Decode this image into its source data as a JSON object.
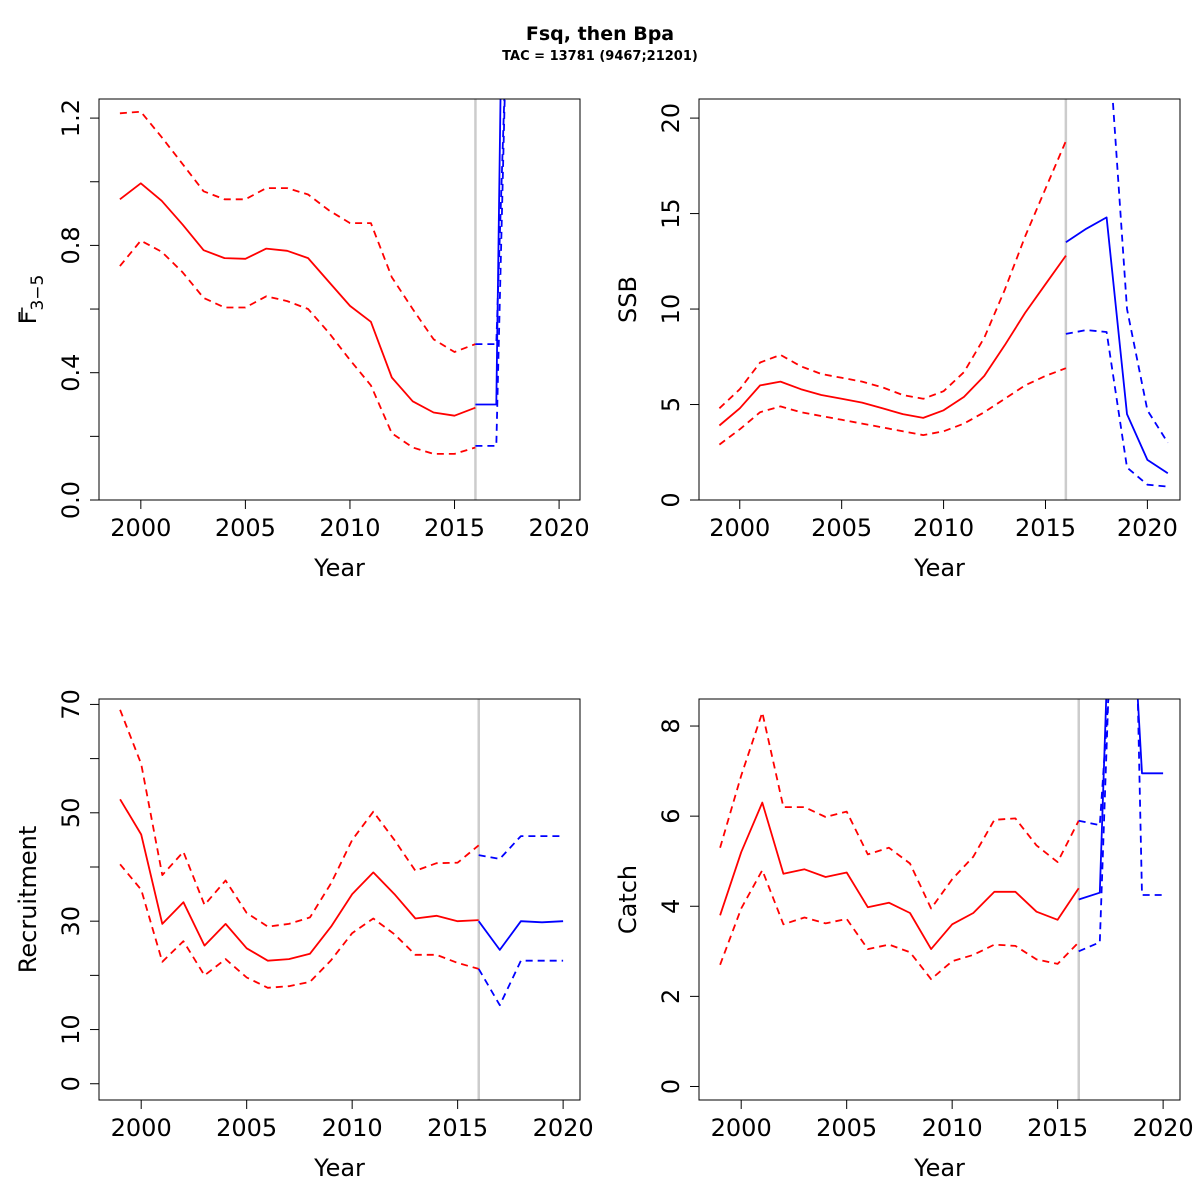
{
  "figure": {
    "title": "Fsq, then Bpa",
    "subtitle": "TAC = 13781 (9467;21201)",
    "colors": {
      "historical": "#ff0000",
      "forecast": "#0000ff",
      "divider": "#cccccc",
      "axes": "#000000"
    }
  },
  "chart_data": [
    {
      "type": "line",
      "ylabel_main": "F",
      "ylabel_sub": "3−5",
      "ylabel": "F̅ 3−5",
      "xlabel": "Year",
      "xlim": [
        1998,
        2021
      ],
      "ylim": [
        0,
        1.26
      ],
      "xticks": [
        2000,
        2005,
        2010,
        2015,
        2020
      ],
      "xtick_labels": [
        "2000",
        "2005",
        "2010",
        "2015",
        "2020"
      ],
      "yticks": [
        0,
        0.2,
        0.4,
        0.6,
        0.8,
        1.0,
        1.2
      ],
      "ytick_labels": [
        "0.0",
        "",
        "0.4",
        "",
        "0.8",
        "",
        "1.2"
      ],
      "divider_x": 2016,
      "series": [
        {
          "role": "historical",
          "style": "solid",
          "x": [
            1999,
            2000,
            2001,
            2002,
            2003,
            2004,
            2005,
            2006,
            2007,
            2008,
            2009,
            2010,
            2011,
            2012,
            2013,
            2014,
            2015,
            2016
          ],
          "y": [
            0.945,
            0.995,
            0.94,
            0.865,
            0.785,
            0.76,
            0.758,
            0.79,
            0.783,
            0.76,
            0.685,
            0.61,
            0.56,
            0.385,
            0.31,
            0.275,
            0.265,
            0.29
          ]
        },
        {
          "role": "historical",
          "style": "dashed",
          "x": [
            1999,
            2000,
            2001,
            2002,
            2003,
            2004,
            2005,
            2006,
            2007,
            2008,
            2009,
            2010,
            2011,
            2012,
            2013,
            2014,
            2015,
            2016
          ],
          "y": [
            1.215,
            1.22,
            1.14,
            1.055,
            0.97,
            0.945,
            0.945,
            0.98,
            0.98,
            0.96,
            0.91,
            0.87,
            0.87,
            0.7,
            0.6,
            0.505,
            0.465,
            0.49
          ]
        },
        {
          "role": "historical",
          "style": "dashed",
          "x": [
            1999,
            2000,
            2001,
            2002,
            2003,
            2004,
            2005,
            2006,
            2007,
            2008,
            2009,
            2010,
            2011,
            2012,
            2013,
            2014,
            2015,
            2016
          ],
          "y": [
            0.735,
            0.815,
            0.78,
            0.715,
            0.635,
            0.605,
            0.605,
            0.64,
            0.625,
            0.6,
            0.525,
            0.44,
            0.36,
            0.21,
            0.165,
            0.145,
            0.145,
            0.165
          ]
        },
        {
          "role": "forecast",
          "style": "solid",
          "x": [
            2016,
            2017,
            2017.2,
            2017.3
          ],
          "y": [
            0.3,
            0.3,
            1.26,
            1.5
          ]
        },
        {
          "role": "forecast",
          "style": "dashed",
          "x": [
            2016,
            2017,
            2017.5
          ],
          "y": [
            0.49,
            0.49,
            1.5
          ]
        },
        {
          "role": "forecast",
          "style": "dashed",
          "x": [
            2016,
            2017,
            2017.4,
            2017.6
          ],
          "y": [
            0.17,
            0.17,
            1.26,
            1.5
          ]
        }
      ]
    },
    {
      "type": "line",
      "ylabel": "SSB",
      "xlabel": "Year",
      "xlim": [
        1998,
        2021.6
      ],
      "ylim": [
        0,
        21
      ],
      "xticks": [
        2000,
        2005,
        2010,
        2015,
        2020
      ],
      "xtick_labels": [
        "2000",
        "2005",
        "2010",
        "2015",
        "2020"
      ],
      "yticks": [
        0,
        5,
        10,
        15,
        20
      ],
      "ytick_labels": [
        "0",
        "5",
        "10",
        "15",
        "20"
      ],
      "divider_x": 2016,
      "series": [
        {
          "role": "historical",
          "style": "solid",
          "x": [
            1999,
            2000,
            2001,
            2002,
            2003,
            2004,
            2005,
            2006,
            2007,
            2008,
            2009,
            2010,
            2011,
            2012,
            2013,
            2014,
            2015,
            2016
          ],
          "y": [
            3.9,
            4.8,
            6.0,
            6.2,
            5.8,
            5.5,
            5.3,
            5.1,
            4.8,
            4.5,
            4.3,
            4.7,
            5.4,
            6.5,
            8.1,
            9.8,
            11.3,
            12.8
          ]
        },
        {
          "role": "historical",
          "style": "dashed",
          "x": [
            1999,
            2000,
            2001,
            2002,
            2003,
            2004,
            2005,
            2006,
            2007,
            2008,
            2009,
            2010,
            2011,
            2012,
            2013,
            2014,
            2015,
            2016
          ],
          "y": [
            4.8,
            5.8,
            7.2,
            7.6,
            7.0,
            6.6,
            6.4,
            6.2,
            5.9,
            5.5,
            5.3,
            5.7,
            6.7,
            8.5,
            11.0,
            13.8,
            16.3,
            18.8
          ]
        },
        {
          "role": "historical",
          "style": "dashed",
          "x": [
            1999,
            2000,
            2001,
            2002,
            2003,
            2004,
            2005,
            2006,
            2007,
            2008,
            2009,
            2010,
            2011,
            2012,
            2013,
            2014,
            2015,
            2016
          ],
          "y": [
            2.9,
            3.7,
            4.6,
            4.9,
            4.6,
            4.4,
            4.2,
            4.0,
            3.8,
            3.6,
            3.4,
            3.6,
            4.0,
            4.6,
            5.3,
            6.0,
            6.5,
            6.9
          ]
        },
        {
          "role": "forecast",
          "style": "solid",
          "x": [
            2016,
            2017,
            2018,
            2019,
            2020,
            2021
          ],
          "y": [
            13.5,
            14.2,
            14.8,
            4.5,
            2.1,
            1.4
          ]
        },
        {
          "role": "forecast",
          "style": "dashed",
          "x": [
            2016,
            2017,
            2018,
            2019,
            2020,
            2021
          ],
          "y": [
            8.7,
            8.9,
            8.8,
            1.7,
            0.8,
            0.7
          ]
        },
        {
          "role": "forecast",
          "style": "dashed",
          "x": [
            2018,
            2018.3,
            2019,
            2020,
            2021
          ],
          "y": [
            22,
            21,
            10.0,
            4.7,
            3.0
          ]
        }
      ]
    },
    {
      "type": "line",
      "ylabel": "Recruitment",
      "xlabel": "Year",
      "xlim": [
        1998,
        2020.8
      ],
      "ylim": [
        -3,
        71
      ],
      "xticks": [
        2000,
        2005,
        2010,
        2015,
        2020
      ],
      "xtick_labels": [
        "2000",
        "2005",
        "2010",
        "2015",
        "2020"
      ],
      "yticks": [
        0,
        10,
        20,
        30,
        40,
        50,
        60,
        70
      ],
      "ytick_labels": [
        "0",
        "10",
        "",
        "30",
        "",
        "50",
        "",
        "70"
      ],
      "divider_x": 2016,
      "series": [
        {
          "role": "historical",
          "style": "solid",
          "x": [
            1999,
            2000,
            2001,
            2002,
            2003,
            2004,
            2005,
            2006,
            2007,
            2008,
            2009,
            2010,
            2011,
            2012,
            2013,
            2014,
            2015,
            2016
          ],
          "y": [
            52.5,
            46,
            29.5,
            33.5,
            25.5,
            29.5,
            25,
            22.7,
            23,
            24,
            29,
            35,
            39,
            35,
            30.5,
            31,
            30,
            30.2
          ]
        },
        {
          "role": "historical",
          "style": "dashed",
          "x": [
            1999,
            2000,
            2001,
            2002,
            2003,
            2004,
            2005,
            2006,
            2007,
            2008,
            2009,
            2010,
            2011,
            2012,
            2013,
            2014,
            2015,
            2016
          ],
          "y": [
            69,
            59,
            38.5,
            42.8,
            33,
            37.5,
            31.5,
            29,
            29.5,
            30.7,
            37,
            45,
            50.2,
            45,
            39.3,
            40.7,
            40.8,
            44
          ]
        },
        {
          "role": "historical",
          "style": "dashed",
          "x": [
            1999,
            2000,
            2001,
            2002,
            2003,
            2004,
            2005,
            2006,
            2007,
            2008,
            2009,
            2010,
            2011,
            2012,
            2013,
            2014,
            2015,
            2016
          ],
          "y": [
            40.5,
            35.8,
            22.5,
            26.3,
            20,
            23,
            19.6,
            17.7,
            18,
            18.8,
            22.8,
            27.8,
            30.5,
            27.6,
            23.8,
            23.8,
            22.3,
            21.2
          ]
        },
        {
          "role": "forecast",
          "style": "solid",
          "x": [
            2016,
            2017,
            2018,
            2019,
            2020
          ],
          "y": [
            30,
            24.7,
            30,
            29.8,
            30
          ]
        },
        {
          "role": "forecast",
          "style": "dashed",
          "x": [
            2016,
            2017,
            2018,
            2019,
            2020
          ],
          "y": [
            42.2,
            41.5,
            45.7,
            45.7,
            45.7
          ]
        },
        {
          "role": "forecast",
          "style": "dashed",
          "x": [
            2016,
            2017,
            2018,
            2019,
            2020
          ],
          "y": [
            21.2,
            14.5,
            22.7,
            22.7,
            22.7
          ]
        }
      ]
    },
    {
      "type": "line",
      "ylabel": "Catch",
      "xlabel": "Year",
      "xlim": [
        1998,
        2020.8
      ],
      "ylim": [
        -0.3,
        8.6
      ],
      "xticks": [
        2000,
        2005,
        2010,
        2015,
        2020
      ],
      "xtick_labels": [
        "2000",
        "2005",
        "2010",
        "2015",
        "2020"
      ],
      "yticks": [
        0,
        2,
        4,
        6,
        8
      ],
      "ytick_labels": [
        "0",
        "2",
        "4",
        "6",
        "8"
      ],
      "divider_x": 2016,
      "series": [
        {
          "role": "historical",
          "style": "solid",
          "x": [
            1999,
            2000,
            2001,
            2002,
            2003,
            2004,
            2005,
            2006,
            2007,
            2008,
            2009,
            2010,
            2011,
            2012,
            2013,
            2014,
            2015,
            2016
          ],
          "y": [
            3.8,
            5.2,
            6.3,
            4.72,
            4.82,
            4.65,
            4.75,
            3.98,
            4.08,
            3.85,
            3.05,
            3.6,
            3.85,
            4.32,
            4.32,
            3.88,
            3.7,
            4.4
          ]
        },
        {
          "role": "historical",
          "style": "dashed",
          "x": [
            1999,
            2000,
            2001,
            2002,
            2003,
            2004,
            2005,
            2006,
            2007,
            2008,
            2009,
            2010,
            2011,
            2012,
            2013,
            2014,
            2015,
            2016
          ],
          "y": [
            5.3,
            6.9,
            8.3,
            6.2,
            6.2,
            5.98,
            6.1,
            5.15,
            5.3,
            4.95,
            3.95,
            4.6,
            5.1,
            5.92,
            5.95,
            5.35,
            4.98,
            5.9
          ]
        },
        {
          "role": "historical",
          "style": "dashed",
          "x": [
            1999,
            2000,
            2001,
            2002,
            2003,
            2004,
            2005,
            2006,
            2007,
            2008,
            2009,
            2010,
            2011,
            2012,
            2013,
            2014,
            2015,
            2016
          ],
          "y": [
            2.7,
            3.95,
            4.8,
            3.6,
            3.75,
            3.62,
            3.72,
            3.05,
            3.15,
            2.98,
            2.38,
            2.78,
            2.92,
            3.15,
            3.12,
            2.82,
            2.72,
            3.2
          ]
        },
        {
          "role": "forecast",
          "style": "solid",
          "x": [
            2016,
            2017,
            2017.3,
            2017.4,
            2018.5,
            2018.8,
            2019,
            2020
          ],
          "y": [
            4.15,
            4.3,
            8.6,
            9.5,
            9.5,
            8.6,
            6.95,
            6.95
          ]
        },
        {
          "role": "forecast",
          "style": "dashed",
          "x": [
            2016,
            2017,
            2017.4,
            2017.5
          ],
          "y": [
            5.9,
            5.8,
            8.6,
            9.5
          ]
        },
        {
          "role": "forecast",
          "style": "dashed",
          "x": [
            2016,
            2017,
            2017.4,
            2017.6,
            2018.5,
            2018.8,
            2019,
            2020
          ],
          "y": [
            3.0,
            3.2,
            8.6,
            9.5,
            9.5,
            8.6,
            4.25,
            4.25
          ]
        }
      ]
    }
  ]
}
